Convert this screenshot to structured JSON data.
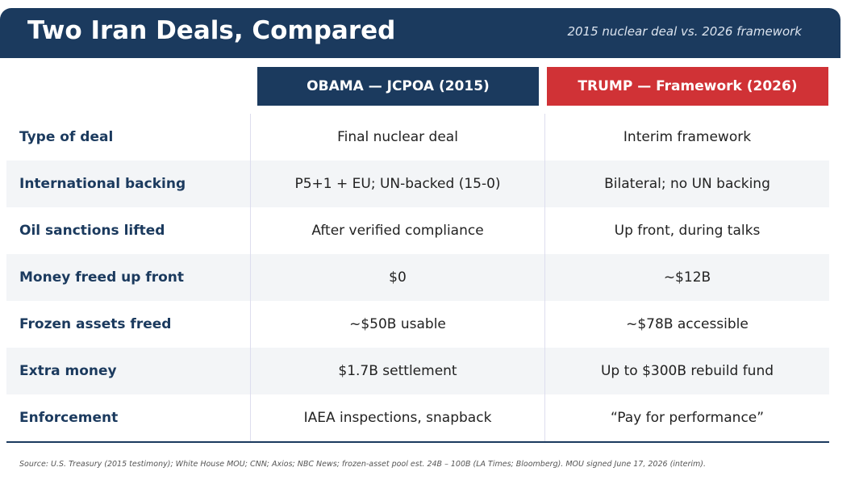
{
  "header": {
    "title": "Two Iran Deals, Compared",
    "subtitle": "2015 nuclear deal  vs.  2026 framework"
  },
  "table": {
    "columns": [
      "OBAMA  —  JCPOA (2015)",
      "TRUMP  —  Framework (2026)"
    ],
    "rows": [
      [
        "Type of deal",
        "Final nuclear deal",
        "Interim framework"
      ],
      [
        "International backing",
        "P5+1 + EU; UN-backed (15-0)",
        "Bilateral; no UN backing"
      ],
      [
        "Oil sanctions lifted",
        "After verified compliance",
        "Up front, during talks"
      ],
      [
        "Money freed up front",
        "$0",
        "~$12B"
      ],
      [
        "Frozen assets freed",
        "~$50B usable",
        "~$78B accessible"
      ],
      [
        "Extra money",
        "$1.7B settlement",
        "Up to $300B rebuild fund"
      ],
      [
        "Enforcement",
        "IAEA inspections, snapback",
        "“Pay for performance”"
      ]
    ]
  },
  "footer": {
    "source": "Source: U.S. Treasury (2015 testimony); White House MOU; CNN; Axios; NBC News; frozen-asset pool est. 24B – 100B (LA Times; Bloomberg). MOU signed June 17, 2026 (interim)."
  }
}
